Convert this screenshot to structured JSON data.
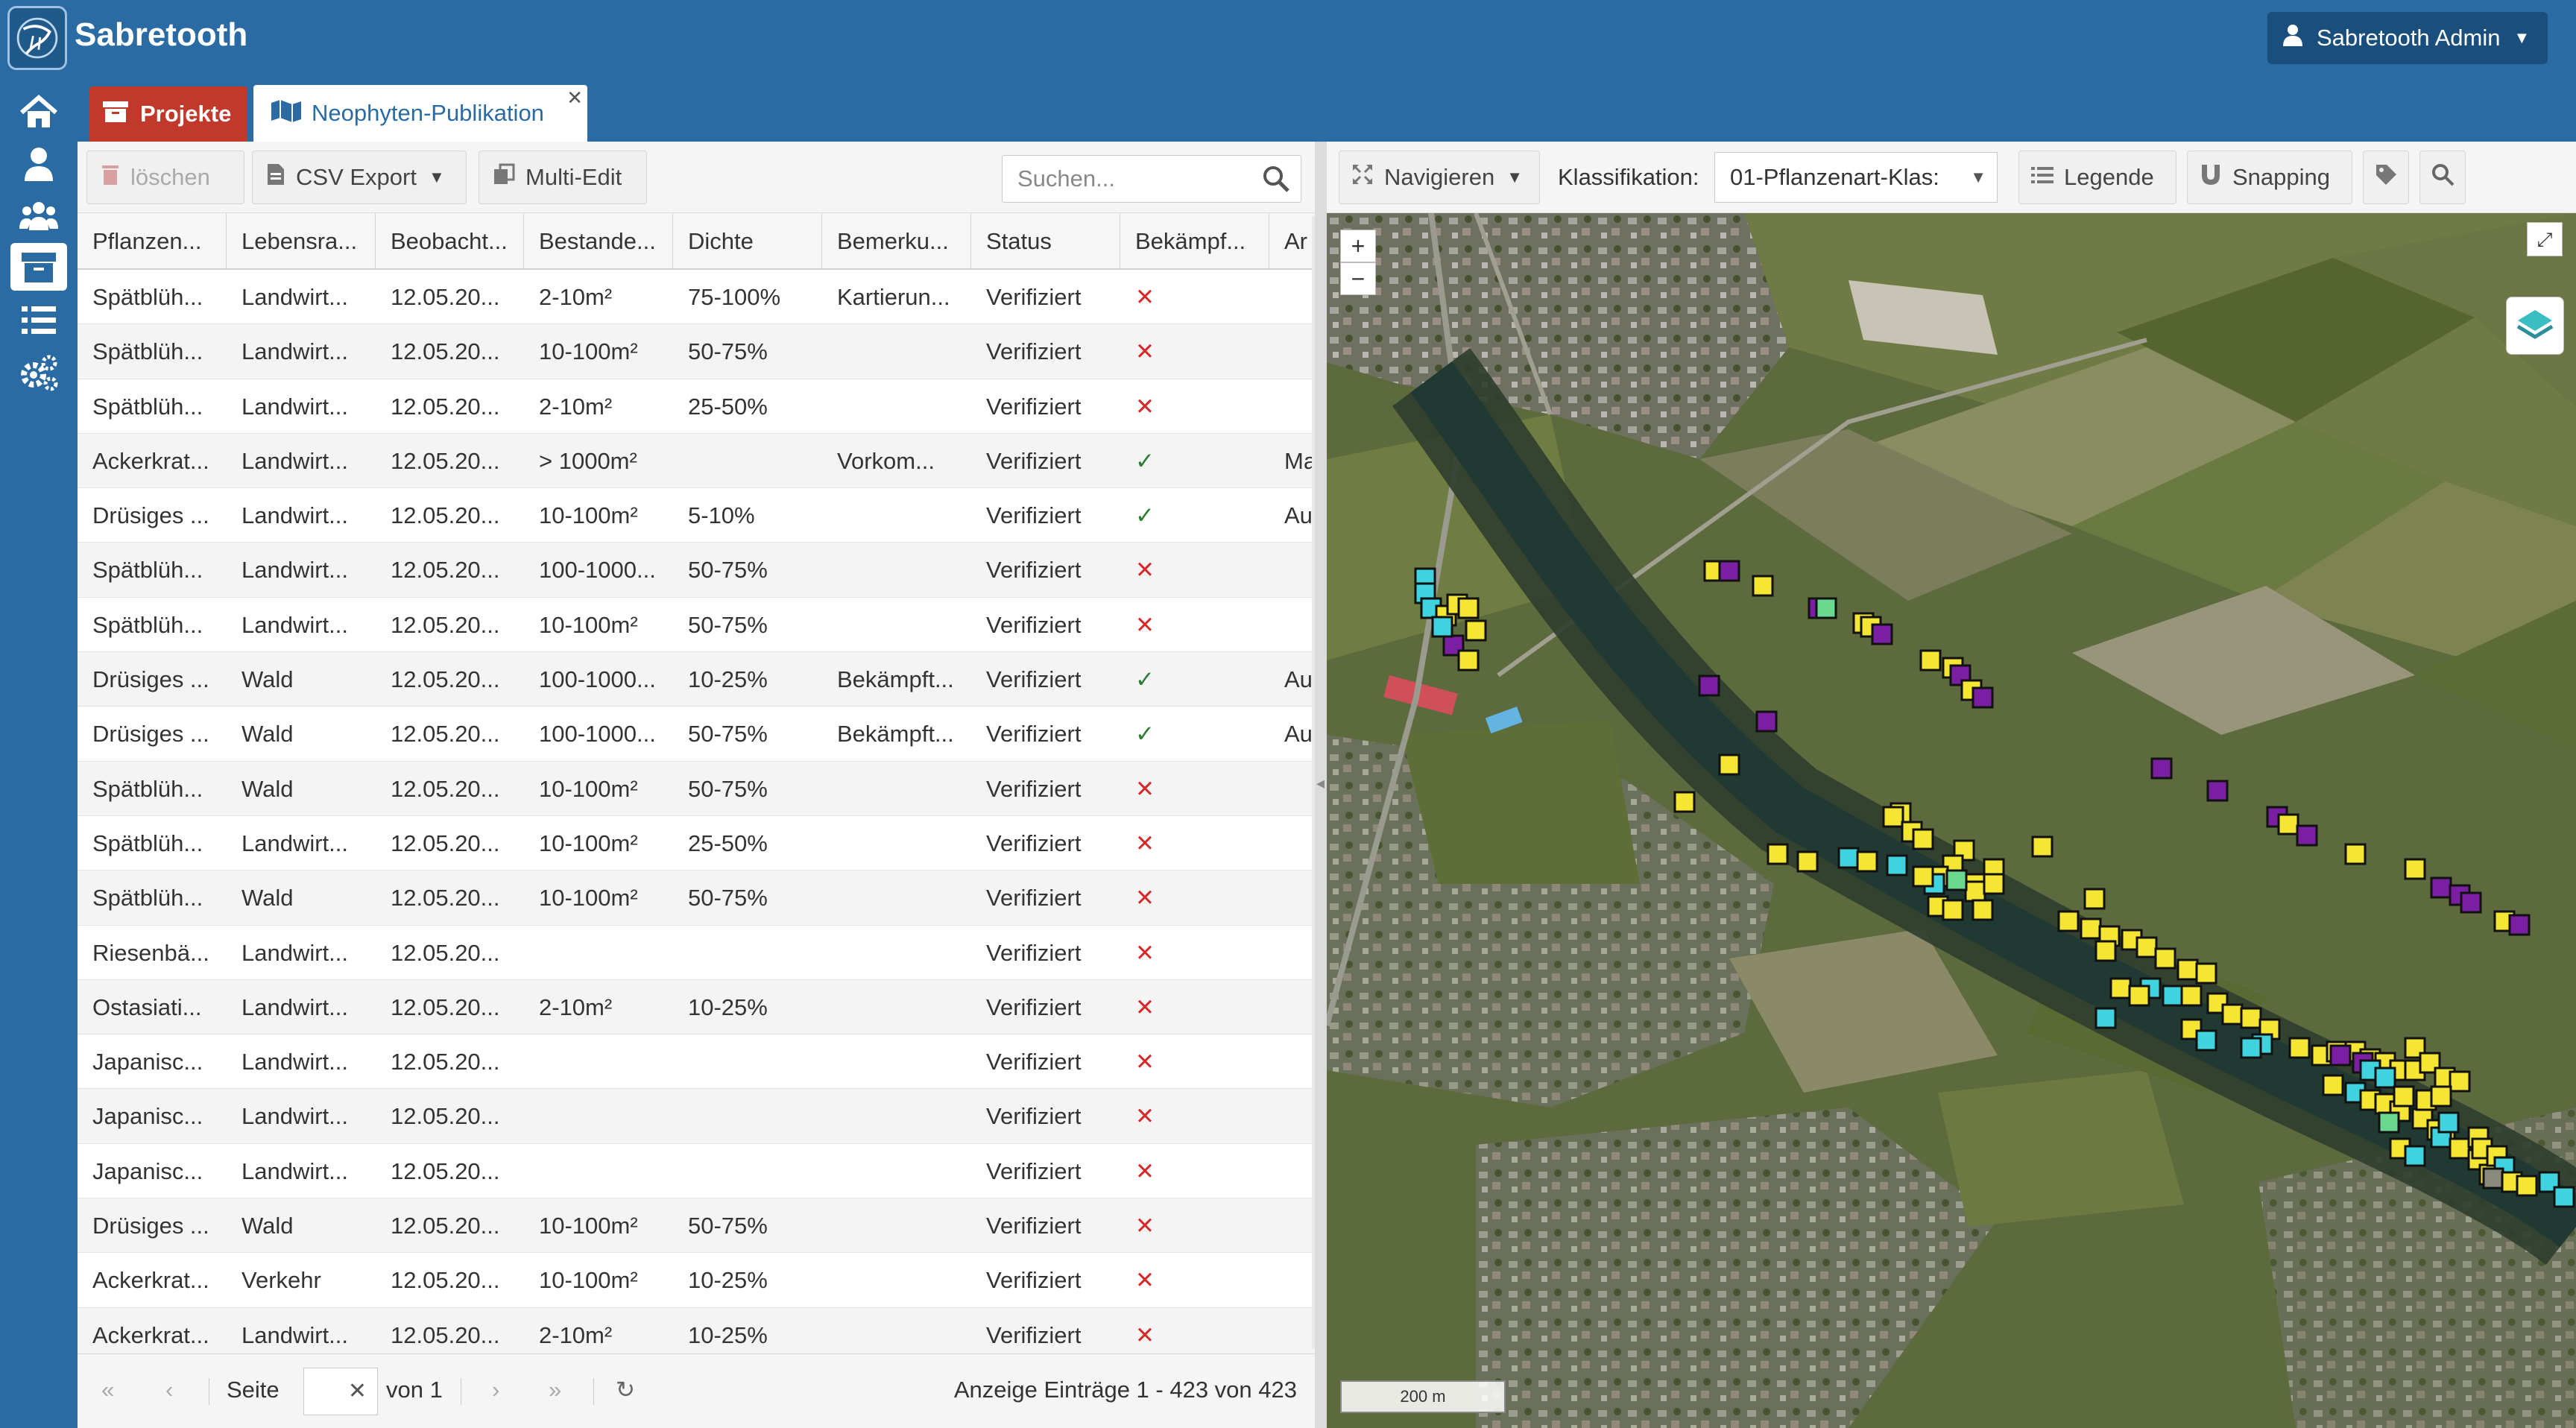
{
  "app": {
    "title": "Sabretooth",
    "user": "Sabretooth Admin"
  },
  "sidebar": {
    "items": [
      "home-icon",
      "user-icon",
      "users-icon",
      "archive-icon",
      "list-icon",
      "settings-icon"
    ]
  },
  "tabs": {
    "projekte": "Projekte",
    "neophyten": "Neophyten-Publikation"
  },
  "toolbar": {
    "delete": "löschen",
    "csv_export": "CSV Export",
    "multi_edit": "Multi-Edit",
    "search_placeholder": "Suchen..."
  },
  "grid": {
    "columns": [
      "Pflanzen...",
      "Lebensra...",
      "Beobacht...",
      "Bestande...",
      "Dichte",
      "Bemerku...",
      "Status",
      "Bekämpf...",
      "Ar"
    ],
    "rows": [
      [
        "Spätblüh...",
        "Landwirt...",
        "12.05.20...",
        "2-10m²",
        "75-100%",
        "Kartierun...",
        "Verifiziert",
        "✕",
        ""
      ],
      [
        "Spätblüh...",
        "Landwirt...",
        "12.05.20...",
        "10-100m²",
        "50-75%",
        "",
        "Verifiziert",
        "✕",
        ""
      ],
      [
        "Spätblüh...",
        "Landwirt...",
        "12.05.20...",
        "2-10m²",
        "25-50%",
        "",
        "Verifiziert",
        "✕",
        ""
      ],
      [
        "Ackerkrat...",
        "Landwirt...",
        "12.05.20...",
        "> 1000m²",
        "",
        "Vorkom...",
        "Verifiziert",
        "✓",
        "Ma"
      ],
      [
        "Drüsiges ...",
        "Landwirt...",
        "12.05.20...",
        "10-100m²",
        "5-10%",
        "",
        "Verifiziert",
        "✓",
        "Au"
      ],
      [
        "Spätblüh...",
        "Landwirt...",
        "12.05.20...",
        "100-1000...",
        "50-75%",
        "",
        "Verifiziert",
        "✕",
        ""
      ],
      [
        "Spätblüh...",
        "Landwirt...",
        "12.05.20...",
        "10-100m²",
        "50-75%",
        "",
        "Verifiziert",
        "✕",
        ""
      ],
      [
        "Drüsiges ...",
        "Wald",
        "12.05.20...",
        "100-1000...",
        "10-25%",
        "Bekämpft...",
        "Verifiziert",
        "✓",
        "Au"
      ],
      [
        "Drüsiges ...",
        "Wald",
        "12.05.20...",
        "100-1000...",
        "50-75%",
        "Bekämpft...",
        "Verifiziert",
        "✓",
        "Au"
      ],
      [
        "Spätblüh...",
        "Wald",
        "12.05.20...",
        "10-100m²",
        "50-75%",
        "",
        "Verifiziert",
        "✕",
        ""
      ],
      [
        "Spätblüh...",
        "Landwirt...",
        "12.05.20...",
        "10-100m²",
        "25-50%",
        "",
        "Verifiziert",
        "✕",
        ""
      ],
      [
        "Spätblüh...",
        "Wald",
        "12.05.20...",
        "10-100m²",
        "50-75%",
        "",
        "Verifiziert",
        "✕",
        ""
      ],
      [
        "Riesenbä...",
        "Landwirt...",
        "12.05.20...",
        "",
        "",
        "",
        "Verifiziert",
        "✕",
        ""
      ],
      [
        "Ostasiati...",
        "Landwirt...",
        "12.05.20...",
        "2-10m²",
        "10-25%",
        "",
        "Verifiziert",
        "✕",
        ""
      ],
      [
        "Japanisc...",
        "Landwirt...",
        "12.05.20...",
        "",
        "",
        "",
        "Verifiziert",
        "✕",
        ""
      ],
      [
        "Japanisc...",
        "Landwirt...",
        "12.05.20...",
        "",
        "",
        "",
        "Verifiziert",
        "✕",
        ""
      ],
      [
        "Japanisc...",
        "Landwirt...",
        "12.05.20...",
        "",
        "",
        "",
        "Verifiziert",
        "✕",
        ""
      ],
      [
        "Drüsiges ...",
        "Wald",
        "12.05.20...",
        "10-100m²",
        "50-75%",
        "",
        "Verifiziert",
        "✕",
        ""
      ],
      [
        "Ackerkrat...",
        "Verkehr",
        "12.05.20...",
        "10-100m²",
        "10-25%",
        "",
        "Verifiziert",
        "✕",
        ""
      ],
      [
        "Ackerkrat...",
        "Landwirt...",
        "12.05.20...",
        "2-10m²",
        "10-25%",
        "",
        "Verifiziert",
        "✕",
        ""
      ]
    ]
  },
  "paging": {
    "page_label": "Seite",
    "of_label": "von 1",
    "info": "Anzeige Einträge 1 - 423 von 423"
  },
  "map_toolbar": {
    "navigate": "Navigieren",
    "classification_label": "Klassifikation:",
    "classification_value": "01-Pflanzenart-Klas:",
    "legend": "Legende",
    "snapping": "Snapping"
  },
  "map": {
    "zoom_in": "+",
    "zoom_out": "−",
    "scale": "200 m"
  },
  "colors": {
    "header": "#2a6ba3",
    "projekte_tab": "#c0392b",
    "marker_yellow": "#f5e633",
    "marker_purple": "#7a1fa2",
    "marker_cyan": "#3fd3e0",
    "marker_green": "#6ad88f",
    "marker_gray": "#8a8a7a"
  }
}
